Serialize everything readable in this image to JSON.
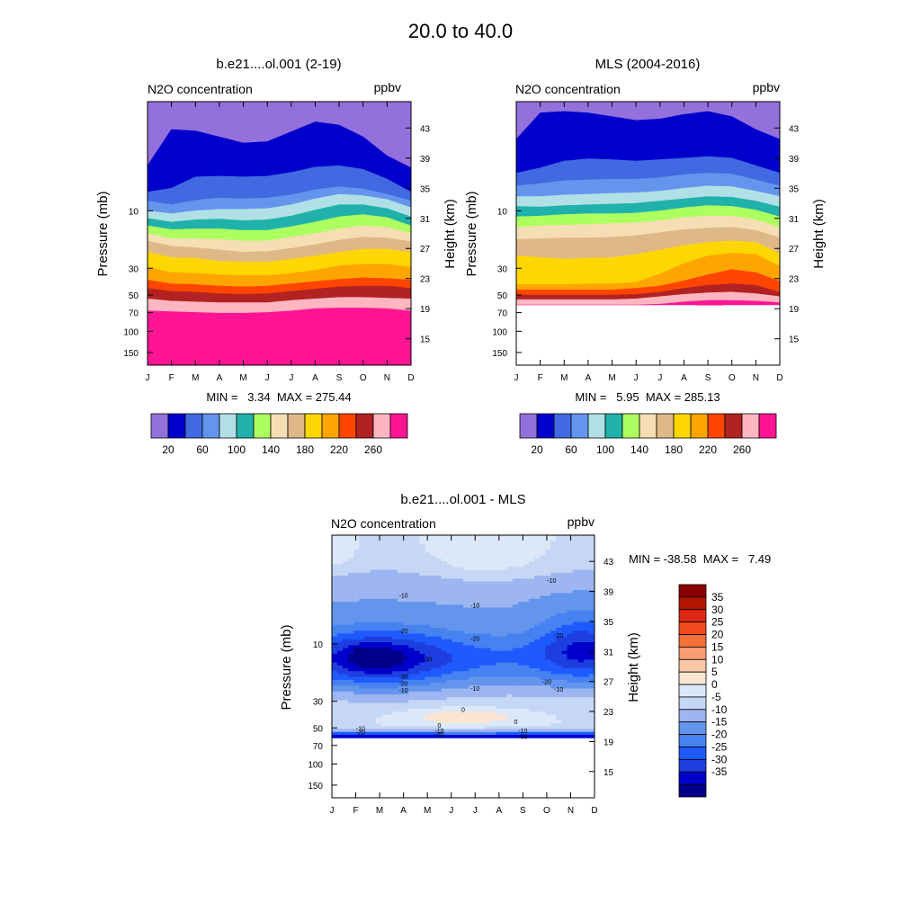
{
  "page_title": "20.0 to  40.0",
  "colors": {
    "seq": [
      "#9370DB",
      "#0000CD",
      "#4169E1",
      "#6495ED",
      "#B0E0E6",
      "#20B2AA",
      "#ADFF5F",
      "#F5DEB3",
      "#DEB887",
      "#FFD700",
      "#FFA500",
      "#FF4500",
      "#B22222",
      "#FFB6C1",
      "#FF1493"
    ],
    "diff": [
      "#00008B",
      "#0000CD",
      "#1E3FE0",
      "#1E5AFF",
      "#4682F0",
      "#6495ED",
      "#9DB5F0",
      "#C6D6F5",
      "#DCE8F8",
      "#FBE4D2",
      "#FAC8A8",
      "#FA9B70",
      "#F5703A",
      "#F04A1E",
      "#DC2814",
      "#B41400",
      "#8B0000"
    ]
  },
  "chart_data": [
    {
      "id": "model",
      "type": "contour",
      "title": "b.e21....ol.001 (2-19)",
      "subtitle_left": "N2O concentration",
      "subtitle_right": "ppbv",
      "xlabel": "",
      "ylabel": "Pressure (mb)",
      "ylabel_right": "Height (km)",
      "categories": [
        "J",
        "F",
        "M",
        "A",
        "M",
        "J",
        "J",
        "A",
        "S",
        "O",
        "N",
        "D"
      ],
      "y_ticks": [
        "10",
        "30",
        "50",
        "70",
        "100",
        "150"
      ],
      "y_tick_values": [
        10,
        30,
        50,
        70,
        100,
        150
      ],
      "right_ticks": [
        "43",
        "39",
        "35",
        "31",
        "27",
        "23",
        "19",
        "15"
      ],
      "right_tick_values": [
        43,
        39,
        35,
        31,
        27,
        23,
        19,
        15
      ],
      "ylim_km": [
        11.5,
        46.5
      ],
      "stats": "MIN =   3.34  MAX = 275.44",
      "colorbar_labels": [
        "20",
        "60",
        "100",
        "140",
        "180",
        "220",
        "260"
      ],
      "colorbar_levels": [
        20,
        40,
        60,
        80,
        100,
        120,
        140,
        160,
        180,
        200,
        220,
        240,
        260,
        280
      ],
      "band_boundaries_km": [
        [
          38.0,
          42.8,
          42.6,
          41.8,
          41.0,
          41.2,
          42.5,
          43.8,
          43.4,
          41.8,
          39.3,
          37.7
        ],
        [
          34.5,
          35.0,
          36.5,
          36.6,
          36.5,
          36.6,
          37.1,
          37.8,
          38.0,
          37.5,
          36.2,
          34.5
        ],
        [
          33.3,
          32.8,
          33.4,
          33.7,
          33.6,
          33.7,
          34.1,
          34.8,
          35.2,
          34.9,
          34.2,
          33.3
        ],
        [
          32.0,
          31.6,
          32.0,
          32.2,
          32.2,
          32.3,
          32.8,
          33.6,
          34.2,
          34.0,
          33.5,
          32.4
        ],
        [
          31.0,
          30.5,
          30.8,
          30.9,
          30.7,
          30.8,
          31.3,
          32.1,
          32.8,
          32.8,
          32.3,
          31.2
        ],
        [
          30.0,
          29.5,
          29.6,
          29.6,
          29.4,
          29.4,
          29.9,
          30.5,
          31.2,
          31.5,
          31.1,
          30.0
        ],
        [
          29.0,
          28.3,
          28.3,
          28.2,
          28.0,
          28.0,
          28.5,
          29.0,
          29.6,
          30.0,
          29.8,
          29.0
        ],
        [
          28.0,
          27.3,
          27.1,
          26.8,
          26.5,
          26.6,
          27.0,
          27.5,
          28.1,
          28.5,
          28.4,
          27.9
        ],
        [
          26.5,
          25.8,
          25.7,
          25.3,
          25.2,
          25.2,
          25.6,
          26.0,
          26.5,
          26.9,
          26.9,
          26.5
        ],
        [
          24.5,
          23.8,
          23.7,
          23.5,
          23.4,
          23.4,
          23.7,
          24.1,
          24.7,
          24.9,
          24.9,
          24.5
        ],
        [
          22.8,
          22.3,
          22.2,
          22.0,
          21.9,
          22.0,
          22.3,
          22.6,
          22.9,
          23.1,
          23.0,
          22.8
        ],
        [
          21.7,
          21.3,
          21.2,
          21.0,
          20.9,
          21.0,
          21.3,
          21.6,
          21.9,
          22.0,
          22.0,
          21.7
        ],
        [
          20.3,
          20.0,
          19.9,
          19.8,
          19.8,
          19.8,
          20.1,
          20.3,
          20.5,
          20.5,
          20.4,
          20.3
        ],
        [
          18.7,
          18.6,
          18.5,
          18.4,
          18.4,
          18.5,
          18.7,
          19.0,
          19.1,
          19.1,
          19.0,
          18.7
        ]
      ]
    },
    {
      "id": "mls",
      "type": "contour",
      "title": "MLS (2004-2016)",
      "subtitle_left": "N2O concentration",
      "subtitle_right": "ppbv",
      "xlabel": "",
      "ylabel": "Pressure (mb)",
      "ylabel_right": "Height (km)",
      "categories": [
        "J",
        "F",
        "M",
        "A",
        "M",
        "J",
        "J",
        "A",
        "S",
        "O",
        "N",
        "D"
      ],
      "y_ticks": [
        "10",
        "30",
        "50",
        "70",
        "100",
        "150"
      ],
      "y_tick_values": [
        10,
        30,
        50,
        70,
        100,
        150
      ],
      "right_ticks": [
        "43",
        "39",
        "35",
        "31",
        "27",
        "23",
        "19",
        "15"
      ],
      "right_tick_values": [
        43,
        39,
        35,
        31,
        27,
        23,
        19,
        15
      ],
      "ylim_km": [
        11.5,
        46.5
      ],
      "valid_bottom_km": 19.5,
      "stats": "MIN =   5.95  MAX = 285.13",
      "colorbar_labels": [
        "20",
        "60",
        "100",
        "140",
        "180",
        "220",
        "260"
      ],
      "colorbar_levels": [
        20,
        40,
        60,
        80,
        100,
        120,
        140,
        160,
        180,
        200,
        220,
        240,
        260,
        280
      ],
      "band_boundaries_km": [
        [
          41.5,
          45.0,
          45.2,
          45.0,
          44.5,
          44.0,
          44.2,
          44.8,
          45.2,
          44.5,
          42.8,
          41.5
        ],
        [
          37.0,
          37.7,
          38.6,
          38.9,
          38.8,
          38.6,
          38.8,
          39.0,
          39.2,
          39.0,
          38.0,
          37.0
        ],
        [
          35.3,
          35.6,
          36.0,
          36.1,
          36.2,
          36.2,
          36.4,
          36.8,
          37.0,
          36.9,
          36.1,
          35.3
        ],
        [
          33.9,
          33.9,
          34.1,
          34.2,
          34.3,
          34.4,
          34.6,
          35.0,
          35.3,
          35.2,
          34.6,
          33.9
        ],
        [
          32.6,
          32.5,
          32.7,
          32.8,
          32.9,
          33.0,
          33.3,
          33.6,
          33.9,
          33.8,
          33.3,
          32.5
        ],
        [
          31.2,
          31.3,
          31.5,
          31.6,
          31.6,
          31.7,
          32.0,
          32.4,
          32.7,
          32.6,
          32.1,
          31.2
        ],
        [
          29.8,
          30.0,
          30.1,
          30.2,
          30.3,
          30.4,
          30.7,
          31.1,
          31.3,
          31.3,
          30.8,
          29.8
        ],
        [
          28.2,
          28.3,
          28.4,
          28.4,
          28.5,
          28.7,
          29.1,
          29.5,
          29.7,
          29.8,
          29.4,
          28.4
        ],
        [
          26.0,
          25.8,
          25.6,
          25.7,
          25.8,
          26.2,
          26.8,
          27.4,
          27.8,
          28.0,
          27.8,
          26.3
        ],
        [
          22.2,
          22.2,
          22.2,
          22.3,
          22.3,
          22.5,
          23.6,
          25.0,
          26.0,
          26.4,
          26.2,
          24.6
        ],
        [
          21.5,
          21.5,
          21.5,
          21.5,
          21.5,
          21.7,
          22.0,
          22.7,
          23.5,
          24.2,
          23.8,
          22.6
        ],
        [
          20.8,
          20.8,
          20.8,
          20.8,
          20.8,
          20.9,
          21.2,
          21.7,
          22.1,
          22.3,
          22.1,
          21.2
        ],
        [
          20.2,
          20.2,
          20.2,
          20.2,
          20.2,
          20.3,
          20.6,
          20.9,
          21.1,
          21.2,
          21.0,
          20.6
        ],
        [
          19.5,
          19.5,
          19.5,
          19.5,
          19.5,
          19.5,
          19.6,
          19.9,
          20.1,
          20.1,
          20.0,
          19.8
        ]
      ]
    },
    {
      "id": "diff",
      "type": "contour",
      "title": "b.e21....ol.001 - MLS",
      "subtitle_left": "N2O concentration",
      "subtitle_right": "ppbv",
      "xlabel": "",
      "ylabel": "Pressure (mb)",
      "ylabel_right": "Height (km)",
      "categories": [
        "J",
        "F",
        "M",
        "A",
        "M",
        "J",
        "J",
        "A",
        "S",
        "O",
        "N",
        "D"
      ],
      "y_ticks": [
        "10",
        "30",
        "50",
        "70",
        "100",
        "150"
      ],
      "y_tick_values": [
        10,
        30,
        50,
        70,
        100,
        150
      ],
      "right_ticks": [
        "43",
        "39",
        "35",
        "31",
        "27",
        "23",
        "19",
        "15"
      ],
      "right_tick_values": [
        43,
        39,
        35,
        31,
        27,
        23,
        19,
        15
      ],
      "ylim_km": [
        11.5,
        46.5
      ],
      "valid_bottom_km": 19.5,
      "stats": "MIN = -38.58  MAX =   7.49",
      "colorbar_labels": [
        "35",
        "30",
        "25",
        "20",
        "15",
        "10",
        "5",
        "0",
        "-5",
        "-10",
        "-15",
        "-20",
        "-25",
        "-30",
        "-35"
      ],
      "colorbar_levels": [
        -35,
        -30,
        -25,
        -20,
        -15,
        -10,
        -5,
        0,
        5,
        10,
        15,
        20,
        25,
        30,
        35
      ],
      "contour_labels": [
        {
          "text": "-10",
          "month": 3.0,
          "km": 38.5
        },
        {
          "text": "-10",
          "month": 6.0,
          "km": 37.2
        },
        {
          "text": "-10",
          "month": 9.2,
          "km": 40.5
        },
        {
          "text": "-20",
          "month": 3.0,
          "km": 33.8
        },
        {
          "text": "-20",
          "month": 6.0,
          "km": 32.8
        },
        {
          "text": "-20",
          "month": 9.5,
          "km": 33.2
        },
        {
          "text": "-30",
          "month": 1.0,
          "km": 31.3
        },
        {
          "text": "-30",
          "month": 4.0,
          "km": 30.0
        },
        {
          "text": "-20",
          "month": 9.0,
          "km": 27.0
        },
        {
          "text": "-20",
          "month": 3.0,
          "km": 26.8
        },
        {
          "text": "-30",
          "month": 3.0,
          "km": 27.7
        },
        {
          "text": "-10",
          "month": 3.0,
          "km": 25.9
        },
        {
          "text": "-10",
          "month": 6.0,
          "km": 26.1
        },
        {
          "text": "-10",
          "month": 9.5,
          "km": 26.0
        },
        {
          "text": "0",
          "month": 5.5,
          "km": 23.3
        },
        {
          "text": "0",
          "month": 7.7,
          "km": 21.7
        },
        {
          "text": "0",
          "month": 4.5,
          "km": 21.2
        },
        {
          "text": "-10",
          "month": 1.2,
          "km": 20.8
        },
        {
          "text": "-20",
          "month": 1.2,
          "km": 20.3
        },
        {
          "text": "-10",
          "month": 4.5,
          "km": 20.5
        },
        {
          "text": "-20",
          "month": 4.5,
          "km": 20.0
        },
        {
          "text": "-10",
          "month": 8.0,
          "km": 20.5
        },
        {
          "text": "-30",
          "month": 8.0,
          "km": 19.7
        }
      ]
    }
  ]
}
